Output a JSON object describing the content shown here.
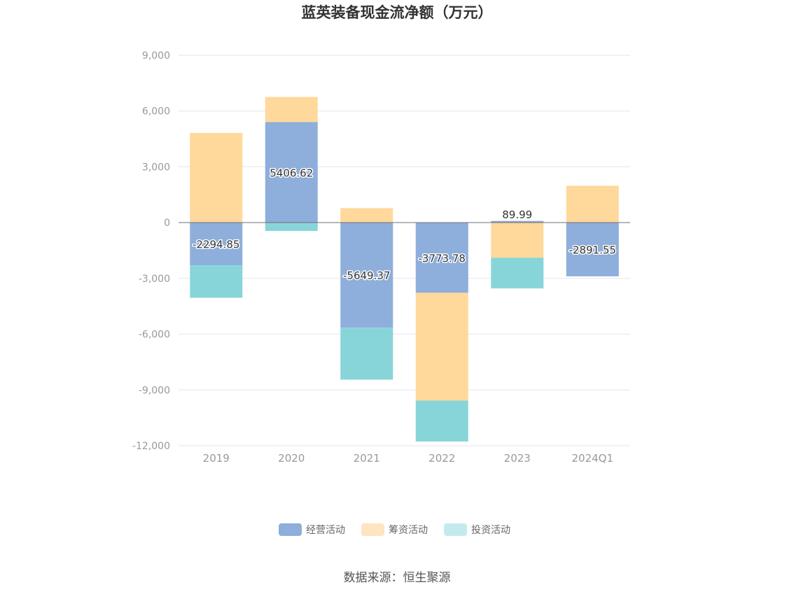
{
  "chart_data": {
    "type": "bar",
    "stacked": true,
    "title": "蓝英装备现金流净额（万元）",
    "categories": [
      "2019",
      "2020",
      "2021",
      "2022",
      "2023",
      "2024Q1"
    ],
    "series": [
      {
        "name": "经营活动",
        "color": "#8eaedb",
        "values": [
          -2294.85,
          5406.62,
          -5649.37,
          -3773.78,
          89.99,
          -2891.55
        ]
      },
      {
        "name": "筹资活动",
        "color": "#ffd89b",
        "values": [
          4820,
          1350,
          780,
          -5800,
          -1890,
          1980
        ]
      },
      {
        "name": "投资活动",
        "color": "#88d5d9",
        "values": [
          -1750,
          -450,
          -2800,
          -2200,
          -1650,
          0
        ]
      }
    ],
    "data_labels": [
      "-2294.85",
      "5406.62",
      "-5649.37",
      "-3773.78",
      "89.99",
      "-2891.55"
    ],
    "ylim": [
      -12000,
      9000
    ],
    "yticks": [
      9000,
      6000,
      3000,
      0,
      -3000,
      -6000,
      -9000,
      -12000
    ],
    "ytick_labels": [
      "9,000",
      "6,000",
      "3,000",
      "0",
      "-3,000",
      "-6,000",
      "-9,000",
      "-12,000"
    ],
    "legend": [
      {
        "name": "经营活动",
        "color": "#8eaedb"
      },
      {
        "name": "筹资活动",
        "color": "#ffe4c1"
      },
      {
        "name": "投资活动",
        "color": "#c3ebed"
      }
    ],
    "legend_position": "bottom-center",
    "source": "数据来源：恒生聚源"
  }
}
